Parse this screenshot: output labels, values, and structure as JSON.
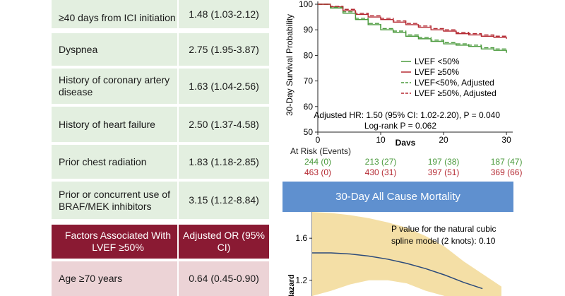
{
  "table": {
    "rows_top": [
      {
        "factor": "≥40 days from ICI initiation",
        "or": "1.48 (1.03-2.12)"
      },
      {
        "factor": "Dyspnea",
        "or": "2.75 (1.95-3.87)"
      },
      {
        "factor": "History of coronary artery disease",
        "or": "1.63 (1.04-2.56)"
      },
      {
        "factor": "History of heart failure",
        "or": "2.50 (1.37-4.58)"
      },
      {
        "factor": "Prior chest radiation",
        "or": "1.83 (1.18-2.85)"
      },
      {
        "factor": "Prior or concurrent use of BRAF/MEK inhibitors",
        "or": "3.15 (1.12-8.84)"
      }
    ],
    "header2": {
      "factor": "Factors Associated With LVEF ≥50%",
      "or": "Adjusted OR (95% CI)"
    },
    "rows_bottom": [
      {
        "factor": "Age ≥70 years",
        "or": "0.64 (0.45-0.90)"
      }
    ]
  },
  "risk": {
    "label": "At Risk (Events)",
    "lt50": [
      "244 (0)",
      "213 (27)",
      "197 (38)",
      "187 (47)"
    ],
    "ge50": [
      "463 (0)",
      "430 (31)",
      "397 (51)",
      "369 (66)"
    ]
  },
  "banner": {
    "title": "30-Day All Cause Mortality"
  },
  "colors": {
    "lt50": "#4a9a3c",
    "ge50": "#b52a33",
    "header": "#8a1a33",
    "banner": "#5f90cf",
    "band": "#f4dfa6",
    "spline": "#2b4a7a"
  },
  "chart_data": [
    {
      "type": "line",
      "title": "",
      "xlabel": "Days",
      "ylabel": "30-Day Survival Probability",
      "xlim": [
        0,
        31
      ],
      "ylim": [
        50,
        100
      ],
      "xticks": [
        "0",
        "10",
        "20",
        "30"
      ],
      "yticks": [
        "50",
        "60",
        "70",
        "80",
        "90",
        "100"
      ],
      "legend": [
        "LVEF <50%",
        "LVEF ≥50%",
        "LVEF<50%, Adjusted",
        "LVEF ≥50%, Adjusted"
      ],
      "annotation_1": "Adjusted HR: 1.50 (95% CI: 1.02-2.20), P = 0.040",
      "annotation_2": "Log-rank P = 0.062",
      "series": [
        {
          "name": "LVEF <50%",
          "x": [
            0,
            2,
            4,
            6,
            8,
            10,
            12,
            14,
            16,
            18,
            20,
            22,
            24,
            26,
            28,
            30
          ],
          "values": [
            100,
            98.5,
            96.5,
            94,
            92,
            90,
            89,
            87.5,
            86.5,
            85.5,
            84.5,
            84,
            83.5,
            82.5,
            82,
            81
          ]
        },
        {
          "name": "LVEF ≥50%",
          "x": [
            0,
            2,
            4,
            6,
            8,
            10,
            12,
            14,
            16,
            18,
            20,
            22,
            24,
            26,
            28,
            30
          ],
          "values": [
            100,
            99,
            97.5,
            96,
            95,
            94,
            93,
            92,
            91,
            90,
            89.5,
            88.5,
            88,
            87.5,
            87,
            86.5
          ]
        },
        {
          "name": "LVEF<50%, Adjusted",
          "x": [
            0,
            2,
            4,
            6,
            8,
            10,
            12,
            14,
            16,
            18,
            20,
            22,
            24,
            26,
            28,
            30
          ],
          "values": [
            100,
            98.8,
            97,
            94.5,
            92.5,
            90.5,
            89.5,
            88,
            87,
            86,
            85,
            84.5,
            84,
            83,
            82.5,
            81.5
          ]
        },
        {
          "name": "LVEF ≥50%, Adjusted",
          "x": [
            0,
            2,
            4,
            6,
            8,
            10,
            12,
            14,
            16,
            18,
            20,
            22,
            24,
            26,
            28,
            30
          ],
          "values": [
            100,
            99.2,
            98,
            96.5,
            95.5,
            94.5,
            93.5,
            92.5,
            91.5,
            90.5,
            90,
            89,
            88.5,
            88,
            87.5,
            87
          ]
        }
      ]
    },
    {
      "type": "line",
      "title": "",
      "xlabel": "",
      "ylabel": "Hazard",
      "xlim": [
        0,
        10
      ],
      "ylim": [
        1.05,
        1.85
      ],
      "yticks": [
        "1.2",
        "1.6"
      ],
      "annotation_1": "P value for the natural cubic",
      "annotation_2": "spline model (2 knots): 0.10",
      "band_x": [
        0,
        1,
        2,
        3,
        4,
        5,
        6,
        7,
        8,
        9,
        10
      ],
      "band_upper": [
        1.85,
        1.84,
        1.82,
        1.79,
        1.75,
        1.7,
        1.62,
        1.52,
        1.38,
        1.26,
        1.14
      ],
      "band_lower": [
        1.05,
        1.1,
        1.16,
        1.2,
        1.2,
        1.17,
        1.1,
        1.05,
        1.05,
        1.05,
        1.05
      ],
      "series": [
        {
          "name": "Hazard",
          "x": [
            0,
            1,
            2,
            3,
            4,
            5,
            6,
            7,
            8,
            9
          ],
          "values": [
            1.46,
            1.46,
            1.45,
            1.43,
            1.4,
            1.36,
            1.31,
            1.25,
            1.18,
            1.12
          ]
        }
      ]
    }
  ]
}
